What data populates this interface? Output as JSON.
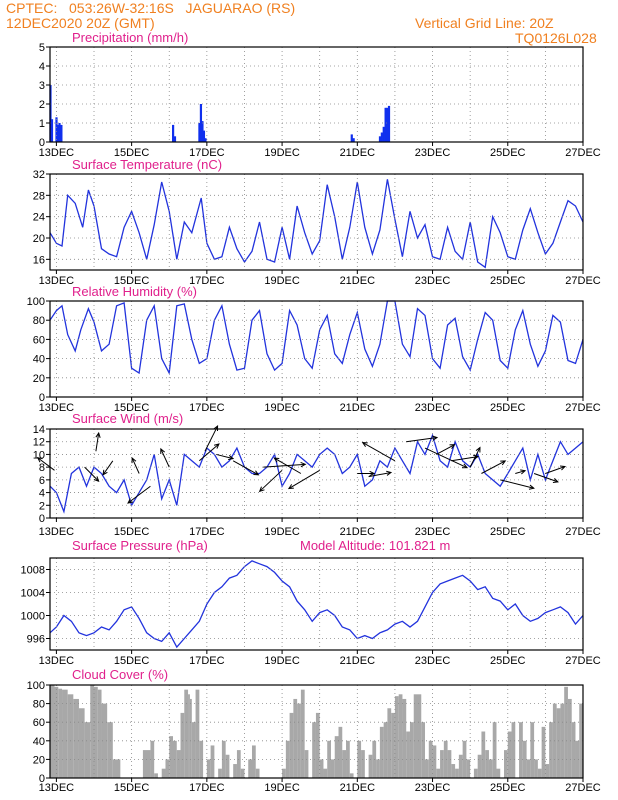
{
  "header": {
    "line1": "CPTEC:   053:26W-32:16S   JAGUARAO (RS)",
    "line2": "12DEC2020 20Z (GMT)",
    "grid_note": "Vertical Grid Line: 20Z",
    "code": "TQ0126L028"
  },
  "colors": {
    "header": "#f08020",
    "panel_title": "#e0208c",
    "line": "#2233dd",
    "bar": "#1030ee",
    "cloud": "#a8a8a8",
    "grid": "#888888",
    "arrow": "#000000"
  },
  "x_axis": {
    "tick_labels": [
      "13DEC",
      "15DEC",
      "17DEC",
      "19DEC",
      "21DEC",
      "23DEC",
      "25DEC",
      "27DEC"
    ],
    "tick_days": [
      13,
      15,
      17,
      19,
      21,
      23,
      25,
      27
    ],
    "range_days": [
      12.83,
      27.0
    ],
    "grid_days": [
      13,
      14,
      15,
      16,
      17,
      18,
      19,
      20,
      21,
      22,
      23,
      24,
      25,
      26,
      27
    ]
  },
  "chart_data": [
    {
      "type": "bar",
      "title": "Precipitation (mm/h)",
      "ylim": [
        0,
        5
      ],
      "yticks": [
        0,
        1,
        2,
        3,
        4,
        5
      ],
      "x": [
        12.84,
        12.88,
        13.0,
        13.04,
        13.08,
        13.13,
        16.1,
        16.15,
        16.8,
        16.84,
        16.88,
        16.92,
        16.96,
        20.85,
        20.9,
        21.6,
        21.65,
        21.7,
        21.75,
        21.8,
        21.84
      ],
      "values": [
        3.0,
        1.2,
        1.3,
        0.9,
        1.0,
        0.9,
        0.9,
        0.3,
        1.0,
        2.0,
        1.1,
        0.6,
        0.2,
        0.4,
        0.2,
        0.3,
        0.5,
        0.8,
        1.8,
        1.8,
        1.9
      ]
    },
    {
      "type": "line",
      "title": "Surface Temperature (nC)",
      "ylim": [
        14,
        32
      ],
      "yticks": [
        16,
        20,
        24,
        28,
        32
      ],
      "x": [
        12.83,
        13.0,
        13.15,
        13.3,
        13.5,
        13.7,
        13.85,
        14.0,
        14.2,
        14.4,
        14.6,
        14.8,
        15.0,
        15.2,
        15.4,
        15.6,
        15.8,
        16.0,
        16.2,
        16.4,
        16.6,
        16.85,
        17.0,
        17.2,
        17.4,
        17.6,
        17.8,
        18.0,
        18.2,
        18.4,
        18.6,
        18.8,
        19.0,
        19.2,
        19.4,
        19.6,
        19.8,
        20.0,
        20.2,
        20.4,
        20.6,
        20.8,
        21.0,
        21.2,
        21.4,
        21.6,
        21.8,
        22.0,
        22.2,
        22.4,
        22.6,
        22.8,
        23.0,
        23.2,
        23.4,
        23.6,
        23.8,
        24.0,
        24.2,
        24.4,
        24.6,
        24.8,
        25.0,
        25.2,
        25.4,
        25.6,
        25.8,
        26.0,
        26.2,
        26.4,
        26.6,
        26.8,
        27.0
      ],
      "values": [
        21,
        19,
        18.5,
        28,
        26.5,
        22,
        29,
        26,
        18,
        17,
        16.5,
        22,
        25,
        21,
        16,
        22.5,
        30.5,
        25,
        16,
        23,
        21,
        27.5,
        19,
        16,
        16.5,
        22,
        18,
        15.5,
        17.5,
        23,
        16,
        15.5,
        22,
        16,
        26,
        21,
        17,
        19.5,
        30,
        24,
        16,
        22,
        30.5,
        22,
        17,
        21.5,
        31,
        23.5,
        16.5,
        25,
        20,
        22.5,
        16.5,
        16,
        22,
        17.5,
        16,
        23,
        15.5,
        14.5,
        24,
        21,
        16.5,
        16,
        21.5,
        25.5,
        21,
        17,
        19,
        23,
        27,
        26,
        23
      ]
    },
    {
      "type": "line",
      "title": "Relative Humidity (%)",
      "ylim": [
        0,
        100
      ],
      "yticks": [
        0,
        20,
        40,
        60,
        80,
        100
      ],
      "x": [
        12.83,
        13.0,
        13.15,
        13.3,
        13.5,
        13.65,
        13.85,
        14.0,
        14.2,
        14.4,
        14.6,
        14.8,
        15.0,
        15.2,
        15.4,
        15.6,
        15.8,
        16.0,
        16.2,
        16.4,
        16.6,
        16.8,
        17.0,
        17.2,
        17.4,
        17.6,
        17.8,
        18.0,
        18.2,
        18.4,
        18.6,
        18.8,
        19.0,
        19.2,
        19.4,
        19.6,
        19.8,
        20.0,
        20.2,
        20.4,
        20.6,
        20.8,
        21.0,
        21.2,
        21.4,
        21.6,
        21.8,
        22.0,
        22.2,
        22.4,
        22.6,
        22.8,
        23.0,
        23.2,
        23.4,
        23.6,
        23.8,
        24.0,
        24.2,
        24.4,
        24.6,
        24.8,
        25.0,
        25.2,
        25.4,
        25.6,
        25.8,
        26.0,
        26.2,
        26.4,
        26.6,
        26.8,
        27.0
      ],
      "values": [
        80,
        90,
        95,
        65,
        48,
        70,
        92,
        78,
        48,
        55,
        95,
        98,
        30,
        25,
        80,
        95,
        40,
        25,
        95,
        97,
        60,
        35,
        40,
        80,
        95,
        55,
        28,
        30,
        80,
        90,
        45,
        28,
        35,
        90,
        75,
        40,
        30,
        70,
        85,
        45,
        35,
        65,
        88,
        50,
        32,
        55,
        100,
        100,
        55,
        42,
        92,
        85,
        40,
        30,
        75,
        82,
        42,
        28,
        60,
        88,
        80,
        38,
        30,
        70,
        90,
        55,
        32,
        48,
        85,
        78,
        38,
        35,
        60
      ]
    },
    {
      "type": "line",
      "title": "Surface Wind (m/s)",
      "ylim": [
        0,
        14
      ],
      "yticks": [
        0,
        2,
        4,
        6,
        8,
        10,
        12,
        14
      ],
      "x": [
        12.83,
        13.0,
        13.2,
        13.4,
        13.6,
        13.8,
        14.0,
        14.2,
        14.4,
        14.6,
        14.8,
        15.0,
        15.2,
        15.4,
        15.6,
        15.8,
        16.0,
        16.2,
        16.4,
        16.6,
        16.8,
        17.0,
        17.2,
        17.4,
        17.6,
        17.8,
        18.0,
        18.2,
        18.4,
        18.6,
        18.8,
        19.0,
        19.2,
        19.4,
        19.6,
        19.8,
        20.0,
        20.2,
        20.4,
        20.6,
        20.8,
        21.0,
        21.2,
        21.4,
        21.6,
        21.8,
        22.0,
        22.2,
        22.4,
        22.6,
        22.8,
        23.0,
        23.2,
        23.4,
        23.6,
        23.8,
        24.0,
        24.2,
        24.4,
        24.6,
        24.8,
        25.0,
        25.2,
        25.4,
        25.6,
        25.8,
        26.0,
        26.2,
        26.4,
        26.6,
        26.8,
        27.0
      ],
      "values": [
        5,
        4,
        1,
        7,
        8,
        5,
        8,
        7,
        5,
        4,
        6,
        2,
        4,
        6,
        10,
        3,
        6,
        2,
        10,
        9,
        8,
        11,
        10,
        8,
        9,
        11,
        8,
        7,
        7,
        8,
        10,
        5,
        7,
        10,
        9,
        8,
        10,
        11,
        10,
        7,
        8,
        10,
        5,
        6,
        9,
        8,
        11,
        9,
        7,
        12,
        10,
        13,
        9,
        8,
        12,
        9,
        8,
        10,
        7,
        6,
        5,
        7,
        9,
        11,
        6,
        10,
        6,
        9,
        12,
        10,
        11,
        12
      ]
    },
    {
      "type": "line",
      "title": "Surface Pressure (hPa)",
      "annotation": "Model Altitude: 101.821  m",
      "ylim": [
        994,
        1010
      ],
      "yticks": [
        996,
        1000,
        1004,
        1008
      ],
      "x": [
        12.83,
        13.0,
        13.2,
        13.4,
        13.6,
        13.8,
        14.0,
        14.2,
        14.4,
        14.6,
        14.8,
        15.0,
        15.2,
        15.4,
        15.6,
        15.8,
        16.0,
        16.2,
        16.4,
        16.6,
        16.8,
        17.0,
        17.2,
        17.4,
        17.6,
        17.8,
        18.0,
        18.2,
        18.4,
        18.6,
        18.8,
        19.0,
        19.2,
        19.4,
        19.6,
        19.8,
        20.0,
        20.2,
        20.4,
        20.6,
        20.8,
        21.0,
        21.2,
        21.4,
        21.6,
        21.8,
        22.0,
        22.2,
        22.4,
        22.6,
        22.8,
        23.0,
        23.2,
        23.4,
        23.6,
        23.8,
        24.0,
        24.2,
        24.4,
        24.6,
        24.8,
        25.0,
        25.2,
        25.4,
        25.6,
        25.8,
        26.0,
        26.2,
        26.4,
        26.6,
        26.8,
        27.0
      ],
      "values": [
        997,
        998,
        1000,
        999,
        997,
        996.5,
        997,
        998,
        997.5,
        999,
        1001,
        1001.5,
        999.5,
        997,
        996,
        995.5,
        997,
        994.5,
        996,
        997.5,
        999,
        1002,
        1004,
        1005,
        1006.5,
        1007,
        1008.5,
        1009.5,
        1009,
        1008.5,
        1007.5,
        1006,
        1005,
        1002.5,
        1001,
        999,
        1000.5,
        1001,
        1000,
        998,
        997.5,
        996,
        996.5,
        996,
        997,
        997.5,
        998.5,
        999,
        998,
        999,
        1001.5,
        1004,
        1005.5,
        1006,
        1006.5,
        1007,
        1006,
        1004.5,
        1005,
        1003,
        1002.5,
        1001,
        1002,
        1000,
        999,
        999.5,
        1000.5,
        1001,
        1001.5,
        1000.5,
        998.5,
        1000
      ]
    },
    {
      "type": "area",
      "title": "Cloud Cover (%)",
      "ylim": [
        0,
        100
      ],
      "yticks": [
        0,
        20,
        40,
        60,
        80,
        100
      ],
      "x": [
        12.83,
        12.95,
        13.05,
        13.15,
        13.3,
        13.45,
        13.6,
        13.75,
        13.9,
        14.0,
        14.1,
        14.2,
        14.35,
        14.5,
        14.7,
        15.0,
        15.3,
        15.5,
        15.6,
        15.7,
        15.8,
        15.9,
        16.0,
        16.1,
        16.2,
        16.3,
        16.4,
        16.5,
        16.55,
        16.6,
        16.7,
        16.8,
        16.9,
        17.0,
        17.1,
        17.2,
        17.3,
        17.4,
        17.5,
        17.6,
        17.7,
        17.8,
        17.9,
        18.0,
        18.1,
        18.2,
        18.3,
        18.4,
        18.5,
        18.6,
        18.7,
        18.8,
        18.9,
        19.0,
        19.1,
        19.2,
        19.3,
        19.4,
        19.5,
        19.6,
        19.7,
        19.8,
        19.9,
        20.0,
        20.1,
        20.2,
        20.3,
        20.4,
        20.5,
        20.6,
        20.7,
        20.8,
        20.9,
        21.0,
        21.1,
        21.2,
        21.3,
        21.4,
        21.5,
        21.6,
        21.7,
        21.8,
        21.9,
        22.0,
        22.1,
        22.2,
        22.3,
        22.4,
        22.5,
        22.6,
        22.7,
        22.8,
        22.9,
        23.0,
        23.1,
        23.2,
        23.3,
        23.4,
        23.5,
        23.6,
        23.7,
        23.8,
        23.9,
        24.0,
        24.1,
        24.2,
        24.3,
        24.4,
        24.5,
        24.6,
        24.7,
        24.8,
        24.9,
        25.0,
        25.1,
        25.2,
        25.3,
        25.4,
        25.5,
        25.6,
        25.7,
        25.8,
        25.9,
        26.0,
        26.1,
        26.2,
        26.3,
        26.4,
        26.5,
        26.6,
        26.7,
        26.8,
        26.9,
        27.0
      ],
      "values": [
        100,
        98,
        96,
        95,
        90,
        85,
        75,
        60,
        100,
        98,
        95,
        80,
        60,
        20,
        0,
        0,
        30,
        40,
        5,
        0,
        10,
        20,
        45,
        40,
        30,
        70,
        95,
        90,
        85,
        60,
        95,
        40,
        0,
        20,
        35,
        0,
        10,
        40,
        25,
        0,
        15,
        30,
        10,
        0,
        20,
        35,
        10,
        0,
        0,
        0,
        0,
        0,
        0,
        10,
        40,
        70,
        85,
        80,
        95,
        30,
        0,
        60,
        70,
        20,
        10,
        40,
        20,
        45,
        55,
        30,
        40,
        5,
        0,
        40,
        30,
        0,
        25,
        40,
        20,
        55,
        60,
        75,
        70,
        88,
        90,
        85,
        50,
        60,
        90,
        90,
        60,
        20,
        40,
        35,
        10,
        30,
        40,
        30,
        15,
        10,
        25,
        40,
        20,
        0,
        10,
        25,
        50,
        30,
        20,
        60,
        10,
        0,
        30,
        50,
        60,
        0,
        60,
        40,
        20,
        60,
        20,
        10,
        55,
        15,
        60,
        80,
        75,
        80,
        98,
        85,
        60,
        40,
        80,
        85
      ]
    }
  ],
  "wind_vectors": {
    "x": [
      12.95,
      13.75,
      14.05,
      14.5,
      15.2,
      15.5,
      16.0,
      16.8,
      16.95,
      17.25,
      17.7,
      18.5,
      19.0,
      19.5,
      20.0,
      21.0,
      21.3,
      22.0,
      22.3,
      22.8,
      23.1,
      23.5,
      24.0,
      24.3,
      24.8,
      25.2,
      25.7,
      26.0
    ],
    "y": [
      7.5,
      8,
      10.5,
      9,
      7,
      5,
      8,
      9,
      10.5,
      10,
      9,
      8,
      7.5,
      7,
      7.5,
      7,
      6.5,
      9,
      12,
      11,
      10,
      9,
      8,
      7,
      6,
      7,
      7,
      7
    ],
    "u": [
      -1.2,
      1,
      0.2,
      -0.7,
      -0.5,
      -1.6,
      -0.6,
      1.4,
      0.9,
      1.2,
      1.8,
      3.0,
      -1.6,
      -1.9,
      -2.2,
      1.2,
      1.6,
      -2.3,
      2.2,
      3.0,
      1.3,
      1.9,
      0.7,
      1.7,
      2.4,
      0.7,
      1.7,
      1.4
    ],
    "v": [
      0.9,
      -1.0,
      1.3,
      -1.0,
      1.1,
      -1.2,
      1.3,
      1.2,
      1.8,
      -0.3,
      -1.0,
      0.2,
      -1.5,
      1.1,
      -1.3,
      0.0,
      0.3,
      1.3,
      0.3,
      -1.4,
      0.7,
      0.3,
      1.4,
      0.9,
      -0.6,
      0.2,
      -0.6,
      0.5
    ]
  }
}
